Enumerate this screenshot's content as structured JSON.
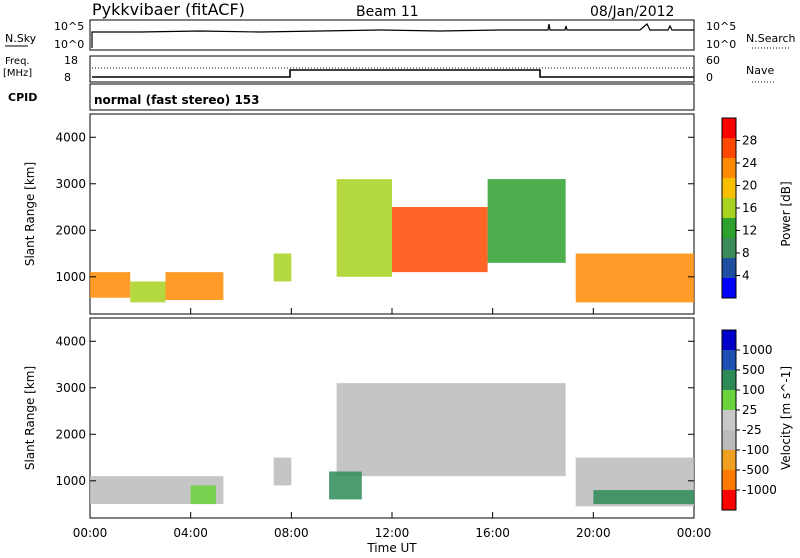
{
  "header": {
    "title": "Pykkvibaer (fitACF)",
    "beam": "Beam 11",
    "date": "08/Jan/2012"
  },
  "nsky": {
    "label": "N.Sky",
    "ticks": [
      "10^5",
      "10^0"
    ],
    "right_label": "N.Search",
    "right_ticks": [
      "10^5",
      "10^0"
    ]
  },
  "freq": {
    "label_1": "Freq.",
    "label_2": "[MHz]",
    "ticks": [
      "18",
      "8"
    ],
    "right_label": "Nave",
    "right_ticks": [
      "60",
      "0"
    ]
  },
  "cpid": {
    "label": "CPID",
    "value": "normal (fast stereo) 153"
  },
  "colors": {
    "power_scale": [
      "#0000ff",
      "#1f4fa0",
      "#3a8a5a",
      "#2ea02e",
      "#a7d21f",
      "#f6c000",
      "#ff8a00",
      "#ff4800",
      "#ff0000"
    ],
    "velocity_scale": [
      "#ff0000",
      "#ff7a00",
      "#f0a020",
      "#bbbbbb",
      "#c8c8c8",
      "#6ad23a",
      "#2e8b57",
      "#1e50b4",
      "#0000c8"
    ]
  },
  "chart_data": [
    {
      "type": "heatmap",
      "title": "Power",
      "ylabel": "Slant Range [km]",
      "xlabel": "Time UT",
      "x_ticks": [
        "00:00",
        "04:00",
        "08:00",
        "12:00",
        "16:00",
        "20:00",
        "00:00"
      ],
      "y_ticks": [
        "1000",
        "2000",
        "3000",
        "4000"
      ],
      "ylim": [
        200,
        4500
      ],
      "colorbar": {
        "label": "Power [dB]",
        "ticks": [
          "28",
          "24",
          "20",
          "16",
          "12",
          "8",
          "4"
        ],
        "range": [
          0,
          30
        ]
      },
      "regions": [
        {
          "t": [
            0.0,
            1.6
          ],
          "r": [
            550,
            1100
          ],
          "level": 20
        },
        {
          "t": [
            1.6,
            3.0
          ],
          "r": [
            450,
            900
          ],
          "level": 14
        },
        {
          "t": [
            3.0,
            5.3
          ],
          "r": [
            500,
            1100
          ],
          "level": 22
        },
        {
          "t": [
            7.3,
            8.0
          ],
          "r": [
            900,
            1500
          ],
          "level": 16
        },
        {
          "t": [
            9.8,
            12.0
          ],
          "r": [
            1000,
            3100
          ],
          "level": 14
        },
        {
          "t": [
            12.0,
            15.8
          ],
          "r": [
            1100,
            2500
          ],
          "level": 26
        },
        {
          "t": [
            15.8,
            18.9
          ],
          "r": [
            1300,
            3100
          ],
          "level": 12
        },
        {
          "t": [
            19.3,
            24.0
          ],
          "r": [
            450,
            1500
          ],
          "level": 22
        }
      ]
    },
    {
      "type": "heatmap",
      "title": "Velocity",
      "ylabel": "Slant Range [km]",
      "xlabel": "Time UT",
      "x_ticks": [
        "00:00",
        "04:00",
        "08:00",
        "12:00",
        "16:00",
        "20:00",
        "00:00"
      ],
      "y_ticks": [
        "1000",
        "2000",
        "3000",
        "4000"
      ],
      "ylim": [
        200,
        4500
      ],
      "colorbar": {
        "label": "Velocity [m s^-1]",
        "ticks": [
          "1000",
          "500",
          "100",
          "25",
          "-25",
          "-100",
          "-500",
          "-1000"
        ],
        "range": [
          -1000,
          1000
        ]
      },
      "regions": [
        {
          "t": [
            0.0,
            5.3
          ],
          "r": [
            500,
            1100
          ],
          "level": 0
        },
        {
          "t": [
            4.0,
            5.0
          ],
          "r": [
            500,
            900
          ],
          "level": 80
        },
        {
          "t": [
            7.3,
            8.0
          ],
          "r": [
            900,
            1500
          ],
          "level": 0
        },
        {
          "t": [
            9.8,
            18.9
          ],
          "r": [
            1100,
            3100
          ],
          "level": 0
        },
        {
          "t": [
            9.5,
            10.8
          ],
          "r": [
            600,
            1200
          ],
          "level": 120
        },
        {
          "t": [
            19.3,
            24.0
          ],
          "r": [
            450,
            1500
          ],
          "level": 0
        },
        {
          "t": [
            20.0,
            24.0
          ],
          "r": [
            500,
            800
          ],
          "level": 200
        }
      ]
    }
  ]
}
